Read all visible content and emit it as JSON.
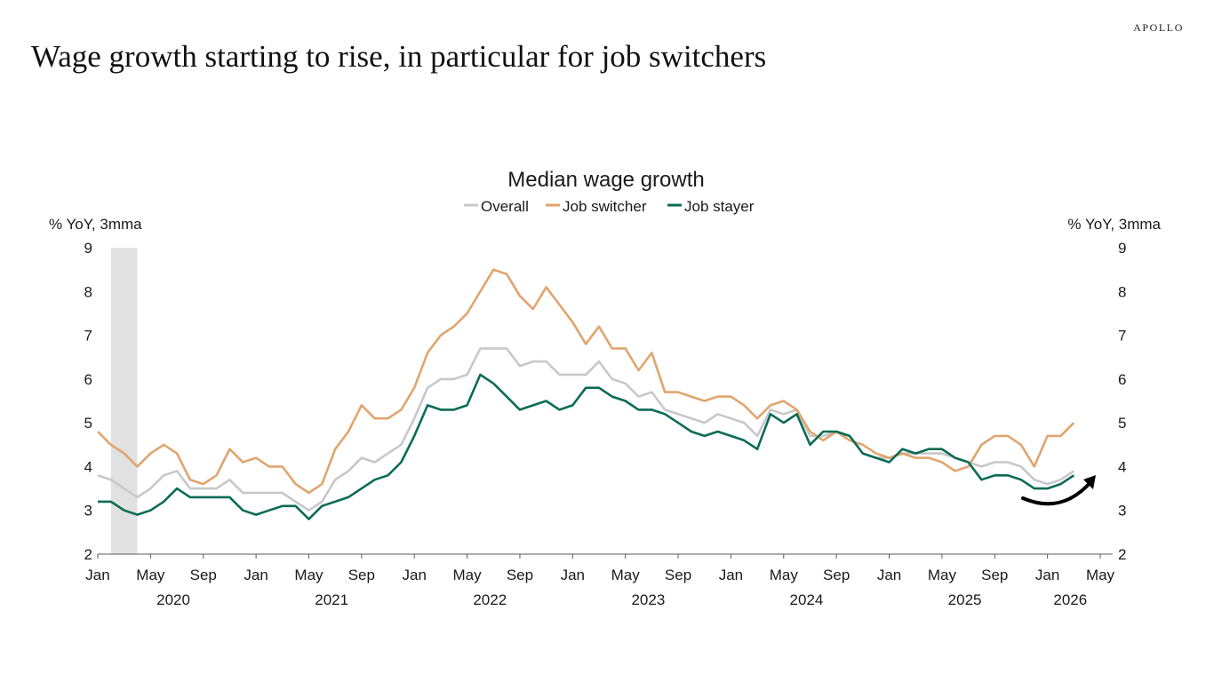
{
  "brand": "APOLLO",
  "headline": "Wage growth starting to rise, in particular for job switchers",
  "chart_data": {
    "type": "line",
    "title": "Median wage growth",
    "ylabel_left": "% YoY, 3mma",
    "ylabel_right": "% YoY, 3mma",
    "ylim": [
      2,
      9
    ],
    "yticks": [
      "2",
      "3",
      "4",
      "5",
      "6",
      "7",
      "8",
      "9"
    ],
    "x_start": "2020-01",
    "x_end": "2026-05",
    "month_ticks": [
      {
        "month": "2020-01",
        "label": "Jan"
      },
      {
        "month": "2020-05",
        "label": "May"
      },
      {
        "month": "2020-09",
        "label": "Sep"
      },
      {
        "month": "2021-01",
        "label": "Jan"
      },
      {
        "month": "2021-05",
        "label": "May"
      },
      {
        "month": "2021-09",
        "label": "Sep"
      },
      {
        "month": "2022-01",
        "label": "Jan"
      },
      {
        "month": "2022-05",
        "label": "May"
      },
      {
        "month": "2022-09",
        "label": "Sep"
      },
      {
        "month": "2023-01",
        "label": "Jan"
      },
      {
        "month": "2023-05",
        "label": "May"
      },
      {
        "month": "2023-09",
        "label": "Sep"
      },
      {
        "month": "2024-01",
        "label": "Jan"
      },
      {
        "month": "2024-05",
        "label": "May"
      },
      {
        "month": "2024-09",
        "label": "Sep"
      },
      {
        "month": "2025-01",
        "label": "Jan"
      },
      {
        "month": "2025-05",
        "label": "May"
      },
      {
        "month": "2025-09",
        "label": "Sep"
      },
      {
        "month": "2026-01",
        "label": "Jan"
      },
      {
        "month": "2026-05",
        "label": "May"
      }
    ],
    "year_labels": [
      {
        "month": "2020-07",
        "label": "2020"
      },
      {
        "month": "2021-07",
        "label": "2021"
      },
      {
        "month": "2022-07",
        "label": "2022"
      },
      {
        "month": "2023-07",
        "label": "2023"
      },
      {
        "month": "2024-07",
        "label": "2024"
      },
      {
        "month": "2025-07",
        "label": "2025"
      },
      {
        "month": "2026-03",
        "label": "2026"
      }
    ],
    "recession_shading": {
      "start": "2020-02",
      "end": "2020-04",
      "color": "#e0e1e0"
    },
    "legend_position": "top-center",
    "trend_arrow": {
      "description": "curved arrow pointing up at end of series",
      "color": "#000000"
    },
    "series": [
      {
        "name": "Overall",
        "color": "#c8c8c8",
        "start": "2020-01",
        "values": [
          3.8,
          3.7,
          3.5,
          3.3,
          3.5,
          3.8,
          3.9,
          3.5,
          3.5,
          3.5,
          3.7,
          3.4,
          3.4,
          3.4,
          3.4,
          3.2,
          3.0,
          3.2,
          3.7,
          3.9,
          4.2,
          4.1,
          4.3,
          4.5,
          5.1,
          5.8,
          6.0,
          6.0,
          6.1,
          6.7,
          6.7,
          6.7,
          6.3,
          6.4,
          6.4,
          6.1,
          6.1,
          6.1,
          6.4,
          6.0,
          5.9,
          5.6,
          5.7,
          5.3,
          5.2,
          5.1,
          5.0,
          5.2,
          5.1,
          5.0,
          4.7,
          5.3,
          5.2,
          5.3,
          4.7,
          4.7,
          4.8,
          4.7,
          4.3,
          4.2,
          4.2,
          4.3,
          4.3,
          4.3,
          4.3,
          4.2,
          4.1,
          4.0,
          4.1,
          4.1,
          4.0,
          3.7,
          3.6,
          3.7,
          3.9
        ]
      },
      {
        "name": "Job switcher",
        "color": "#e0a56e",
        "start": "2020-01",
        "values": [
          4.8,
          4.5,
          4.3,
          4.0,
          4.3,
          4.5,
          4.3,
          3.7,
          3.6,
          3.8,
          4.4,
          4.1,
          4.2,
          4.0,
          4.0,
          3.6,
          3.4,
          3.6,
          4.4,
          4.8,
          5.4,
          5.1,
          5.1,
          5.3,
          5.8,
          6.6,
          7.0,
          7.2,
          7.5,
          8.0,
          8.5,
          8.4,
          7.9,
          7.6,
          8.1,
          7.7,
          7.3,
          6.8,
          7.2,
          6.7,
          6.7,
          6.2,
          6.6,
          5.7,
          5.7,
          5.6,
          5.5,
          5.6,
          5.6,
          5.4,
          5.1,
          5.4,
          5.5,
          5.3,
          4.8,
          4.6,
          4.8,
          4.6,
          4.5,
          4.3,
          4.2,
          4.3,
          4.2,
          4.2,
          4.1,
          3.9,
          4.0,
          4.5,
          4.7,
          4.7,
          4.5,
          4.0,
          4.7,
          4.7,
          5.0
        ]
      },
      {
        "name": "Job stayer",
        "color": "#0b6b55",
        "start": "2020-01",
        "values": [
          3.2,
          3.2,
          3.0,
          2.9,
          3.0,
          3.2,
          3.5,
          3.3,
          3.3,
          3.3,
          3.3,
          3.0,
          2.9,
          3.0,
          3.1,
          3.1,
          2.8,
          3.1,
          3.2,
          3.3,
          3.5,
          3.7,
          3.8,
          4.1,
          4.7,
          5.4,
          5.3,
          5.3,
          5.4,
          6.1,
          5.9,
          5.6,
          5.3,
          5.4,
          5.5,
          5.3,
          5.4,
          5.8,
          5.8,
          5.6,
          5.5,
          5.3,
          5.3,
          5.2,
          5.0,
          4.8,
          4.7,
          4.8,
          4.7,
          4.6,
          4.4,
          5.2,
          5.0,
          5.2,
          4.5,
          4.8,
          4.8,
          4.7,
          4.3,
          4.2,
          4.1,
          4.4,
          4.3,
          4.4,
          4.4,
          4.2,
          4.1,
          3.7,
          3.8,
          3.8,
          3.7,
          3.5,
          3.5,
          3.6,
          3.8
        ]
      }
    ]
  }
}
